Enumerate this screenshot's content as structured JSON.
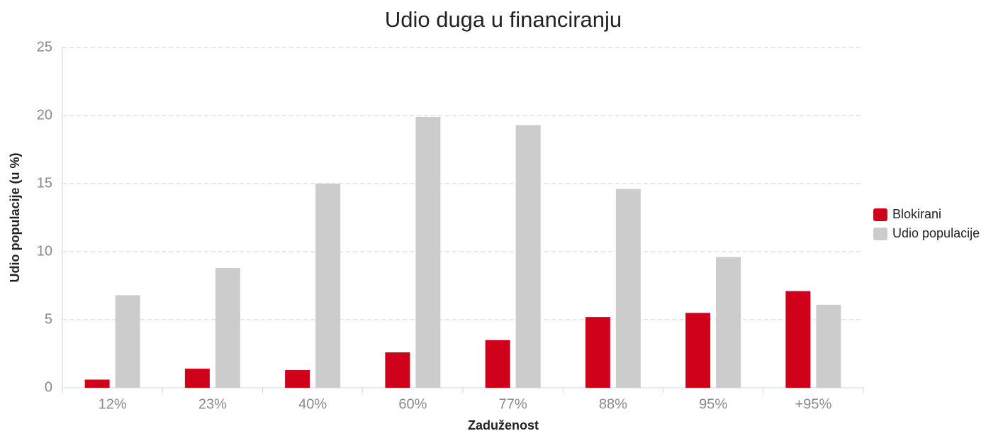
{
  "chart_data": {
    "type": "bar",
    "title": "Udio duga u financiranju",
    "x_label": "Zaduženost",
    "y_label": "Udio populacije (u %)",
    "categories": [
      "12%",
      "23%",
      "40%",
      "60%",
      "77%",
      "88%",
      "95%",
      "+95%"
    ],
    "series": [
      {
        "name": "Blokirani",
        "color": "#d0021b",
        "values": [
          0.6,
          1.4,
          1.3,
          2.6,
          3.5,
          5.2,
          5.5,
          7.1
        ]
      },
      {
        "name": "Udio populacije",
        "color": "#cccccc",
        "values": [
          6.8,
          8.8,
          15.0,
          19.9,
          19.3,
          14.6,
          9.6,
          6.1
        ]
      }
    ],
    "ylim": [
      0,
      25
    ],
    "yticks": [
      0,
      5,
      10,
      15,
      20,
      25
    ],
    "grid": true,
    "legend": "right"
  }
}
